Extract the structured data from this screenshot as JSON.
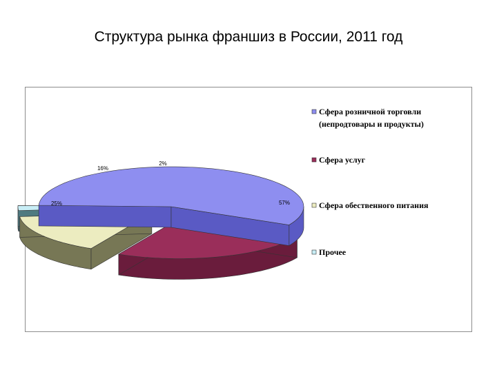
{
  "slide": {
    "title": "Структура рынка франшиз в России, 2011 год"
  },
  "chart_data": {
    "type": "pie",
    "title": "",
    "categories": [
      "Сфера розничной торговли (непродтовары и продукты)",
      "Сфера услуг",
      "Сфера обественного питания",
      "Прочее"
    ],
    "legend_lines": [
      [
        "Сфера розничной торговли",
        "(непродтовары и продукты)"
      ],
      [
        "Сфера услуг"
      ],
      [
        "Сфера  обественного питания"
      ],
      [
        "Прочее"
      ]
    ],
    "values": [
      57,
      25,
      16,
      2
    ],
    "data_labels": [
      "57%",
      "25%",
      "16%",
      "2%"
    ],
    "colors": [
      "#8e8ef0",
      "#9a2e5a",
      "#ececc0",
      "#c8eef6"
    ],
    "dark_colors": [
      "#5a5ac4",
      "#6a1c3c",
      "#777755",
      "#4f7a80"
    ],
    "legend_placement": "right",
    "exploded": true,
    "three_d": true
  }
}
